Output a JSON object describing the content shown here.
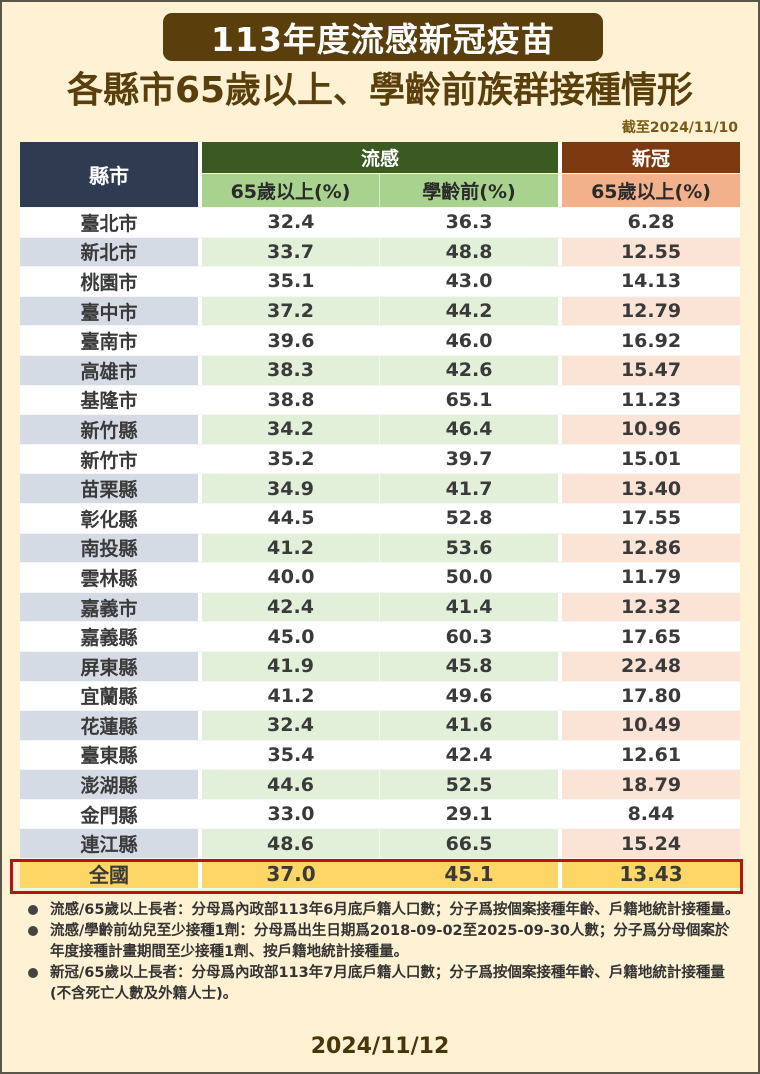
{
  "title": "113年度流感新冠疫苗",
  "subtitle": "各縣市65歲以上、學齡前族群接種情形",
  "as_of": "截至2024/11/10",
  "table": {
    "headers": {
      "county": "縣市",
      "flu_group": "流感",
      "covid_group": "新冠",
      "flu_65": "65歲以上(%)",
      "flu_preschool": "學齡前(%)",
      "covid_65": "65歲以上(%)"
    },
    "rows": [
      {
        "county": "臺北市",
        "flu_65": "32.4",
        "flu_preschool": "36.3",
        "covid_65": "6.28"
      },
      {
        "county": "新北市",
        "flu_65": "33.7",
        "flu_preschool": "48.8",
        "covid_65": "12.55"
      },
      {
        "county": "桃園市",
        "flu_65": "35.1",
        "flu_preschool": "43.0",
        "covid_65": "14.13"
      },
      {
        "county": "臺中市",
        "flu_65": "37.2",
        "flu_preschool": "44.2",
        "covid_65": "12.79"
      },
      {
        "county": "臺南市",
        "flu_65": "39.6",
        "flu_preschool": "46.0",
        "covid_65": "16.92"
      },
      {
        "county": "高雄市",
        "flu_65": "38.3",
        "flu_preschool": "42.6",
        "covid_65": "15.47"
      },
      {
        "county": "基隆市",
        "flu_65": "38.8",
        "flu_preschool": "65.1",
        "covid_65": "11.23"
      },
      {
        "county": "新竹縣",
        "flu_65": "34.2",
        "flu_preschool": "46.4",
        "covid_65": "10.96"
      },
      {
        "county": "新竹市",
        "flu_65": "35.2",
        "flu_preschool": "39.7",
        "covid_65": "15.01"
      },
      {
        "county": "苗栗縣",
        "flu_65": "34.9",
        "flu_preschool": "41.7",
        "covid_65": "13.40"
      },
      {
        "county": "彰化縣",
        "flu_65": "44.5",
        "flu_preschool": "52.8",
        "covid_65": "17.55"
      },
      {
        "county": "南投縣",
        "flu_65": "41.2",
        "flu_preschool": "53.6",
        "covid_65": "12.86"
      },
      {
        "county": "雲林縣",
        "flu_65": "40.0",
        "flu_preschool": "50.0",
        "covid_65": "11.79"
      },
      {
        "county": "嘉義市",
        "flu_65": "42.4",
        "flu_preschool": "41.4",
        "covid_65": "12.32"
      },
      {
        "county": "嘉義縣",
        "flu_65": "45.0",
        "flu_preschool": "60.3",
        "covid_65": "17.65"
      },
      {
        "county": "屏東縣",
        "flu_65": "41.9",
        "flu_preschool": "45.8",
        "covid_65": "22.48"
      },
      {
        "county": "宜蘭縣",
        "flu_65": "41.2",
        "flu_preschool": "49.6",
        "covid_65": "17.80"
      },
      {
        "county": "花蓮縣",
        "flu_65": "32.4",
        "flu_preschool": "41.6",
        "covid_65": "10.49"
      },
      {
        "county": "臺東縣",
        "flu_65": "35.4",
        "flu_preschool": "42.4",
        "covid_65": "12.61"
      },
      {
        "county": "澎湖縣",
        "flu_65": "44.6",
        "flu_preschool": "52.5",
        "covid_65": "18.79"
      },
      {
        "county": "金門縣",
        "flu_65": "33.0",
        "flu_preschool": "29.1",
        "covid_65": "8.44"
      },
      {
        "county": "連江縣",
        "flu_65": "48.6",
        "flu_preschool": "66.5",
        "covid_65": "15.24"
      }
    ],
    "total": {
      "county": "全國",
      "flu_65": "37.0",
      "flu_preschool": "45.1",
      "covid_65": "13.43"
    }
  },
  "notes": [
    "流感/65歲以上長者：分母爲內政部113年6月底戶籍人口數；分子爲按個案接種年齡、戶籍地統計接種量。",
    "流感/學齡前幼兒至少接種1劑：分母爲出生日期爲2018-09-02至2025-09-30人數；分子爲分母個案於年度接種計畫期間至少接種1劑、按戶籍地統計接種量。",
    "新冠/65歲以上長者：分母爲內政部113年7月底戶籍人口數；分子爲按個案接種年齡、戶籍地統計接種量(不含死亡人數及外籍人士)。"
  ],
  "footer_date": "2024/11/12",
  "colors": {
    "background": "#fff2d4",
    "title_badge": "#5a3f0c",
    "county_header": "#2f3b50",
    "flu_header": "#3a5a22",
    "flu_subheader": "#a8d28e",
    "covid_header": "#7d3a10",
    "covid_subheader": "#f2b18a",
    "total_row": "#fdd665",
    "total_border": "#b8140f"
  }
}
